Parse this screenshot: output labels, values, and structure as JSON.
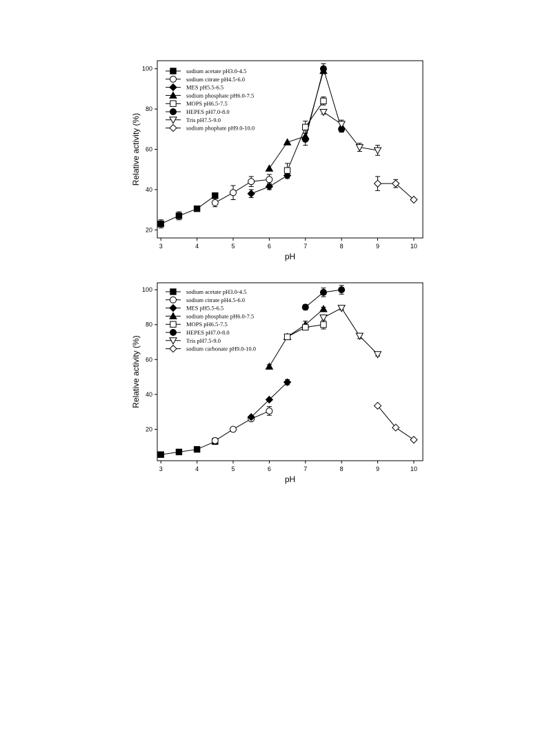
{
  "chart_data": [
    {
      "type": "line",
      "xlabel": "pH",
      "ylabel": "Relative activity (%)",
      "xlim": [
        2.9,
        10.25
      ],
      "ylim": [
        16,
        104
      ],
      "xticks": [
        3,
        4,
        5,
        6,
        7,
        8,
        9,
        10
      ],
      "yticks": [
        20,
        40,
        60,
        80,
        100
      ],
      "legend_position": "top-left",
      "series": [
        {
          "name": "sodium acetate pH3.0-4.5",
          "marker": "square-filled",
          "x": [
            3.0,
            3.5,
            4.0,
            4.5
          ],
          "y": [
            23,
            27,
            30.5,
            37
          ],
          "err": [
            2,
            2,
            1,
            1
          ]
        },
        {
          "name": "sodium citrate pH4.5-6.0",
          "marker": "circle-open",
          "x": [
            4.5,
            5.0,
            5.5,
            6.0
          ],
          "y": [
            33.5,
            38.5,
            44,
            45
          ],
          "err": [
            2,
            3.5,
            2.5,
            2.5
          ]
        },
        {
          "name": "MES pH5.5-6.5",
          "marker": "diamond-filled",
          "x": [
            5.5,
            6.0,
            6.5
          ],
          "y": [
            38,
            41.5,
            47
          ],
          "err": [
            2,
            1.5,
            1.5
          ]
        },
        {
          "name": "sodium phosphate pH6.0-7.5",
          "marker": "triangle-up-filled",
          "x": [
            6.0,
            6.5,
            7.0,
            7.5
          ],
          "y": [
            50.5,
            63.5,
            66.5,
            99
          ],
          "err": [
            0,
            0,
            0,
            1.5
          ]
        },
        {
          "name": "MOPS pH6.5-7.5",
          "marker": "square-open",
          "x": [
            6.5,
            7.0,
            7.5
          ],
          "y": [
            49.5,
            71,
            84
          ],
          "err": [
            3.5,
            3,
            2
          ]
        },
        {
          "name": "HEPES pH7.0-8.0",
          "marker": "circle-filled",
          "x": [
            7.0,
            7.5,
            8.0
          ],
          "y": [
            65,
            100,
            70
          ],
          "err": [
            3,
            2.5,
            1.5
          ]
        },
        {
          "name": "Tris pH7.5-9.0",
          "marker": "triangle-down-open",
          "x": [
            7.5,
            8.0,
            8.5,
            9.0
          ],
          "y": [
            78.5,
            72.5,
            61,
            59.5
          ],
          "err": [
            1,
            2,
            2,
            2.5
          ]
        },
        {
          "name": "sodium phophate pH9.0-10.0",
          "marker": "diamond-open",
          "x": [
            9.0,
            9.5,
            10.0
          ],
          "y": [
            43,
            43,
            35
          ],
          "err": [
            3.5,
            2,
            0
          ]
        }
      ]
    },
    {
      "type": "line",
      "xlabel": "pH",
      "ylabel": "Relative activity (%)",
      "xlim": [
        2.9,
        10.25
      ],
      "ylim": [
        2,
        104
      ],
      "xticks": [
        3,
        4,
        5,
        6,
        7,
        8,
        9,
        10
      ],
      "yticks": [
        20,
        40,
        60,
        80,
        100
      ],
      "legend_position": "top-left",
      "series": [
        {
          "name": "sodium acetate pH3.0-4.5",
          "marker": "square-filled",
          "x": [
            3.0,
            3.5,
            4.0,
            4.5
          ],
          "y": [
            5.5,
            7,
            8.5,
            13
          ],
          "err": [
            0,
            0,
            0,
            1
          ]
        },
        {
          "name": "sodium citrate pH4.5-6.0",
          "marker": "circle-open",
          "x": [
            4.5,
            5.0,
            5.5,
            6.0
          ],
          "y": [
            13.5,
            20,
            26,
            30.5
          ],
          "err": [
            1.5,
            0,
            0,
            2.5
          ]
        },
        {
          "name": "MES pH5.5-6.5",
          "marker": "diamond-filled",
          "x": [
            5.5,
            6.0,
            6.5
          ],
          "y": [
            27,
            37,
            47
          ],
          "err": [
            0,
            0,
            1.5
          ]
        },
        {
          "name": "sodium phosphate pH6.0-7.5",
          "marker": "triangle-up-filled",
          "x": [
            6.0,
            6.5,
            7.0,
            7.5
          ],
          "y": [
            56,
            73,
            80,
            89
          ],
          "err": [
            1,
            1,
            2,
            1
          ]
        },
        {
          "name": "MOPS pH6.5-7.5",
          "marker": "square-open",
          "x": [
            6.5,
            7.0,
            7.5
          ],
          "y": [
            73,
            78.5,
            80
          ],
          "err": [
            1.5,
            1.5,
            2.5
          ]
        },
        {
          "name": "HEPES pH7.0-8.0",
          "marker": "circle-filled",
          "x": [
            7.0,
            7.5,
            8.0
          ],
          "y": [
            90,
            98.5,
            100
          ],
          "err": [
            1.5,
            2.5,
            2.5
          ]
        },
        {
          "name": "Tris pH7.5-9.0",
          "marker": "triangle-down-open",
          "x": [
            7.5,
            8.0,
            8.5,
            9.0
          ],
          "y": [
            84,
            89.5,
            73.5,
            63
          ],
          "err": [
            1.5,
            1,
            1.5,
            1
          ]
        },
        {
          "name": "sodium carbonate pH9.0-10.0",
          "marker": "diamond-open",
          "x": [
            9.0,
            9.5,
            10.0
          ],
          "y": [
            33.5,
            21,
            14
          ],
          "err": [
            0,
            0,
            0
          ]
        }
      ]
    }
  ]
}
